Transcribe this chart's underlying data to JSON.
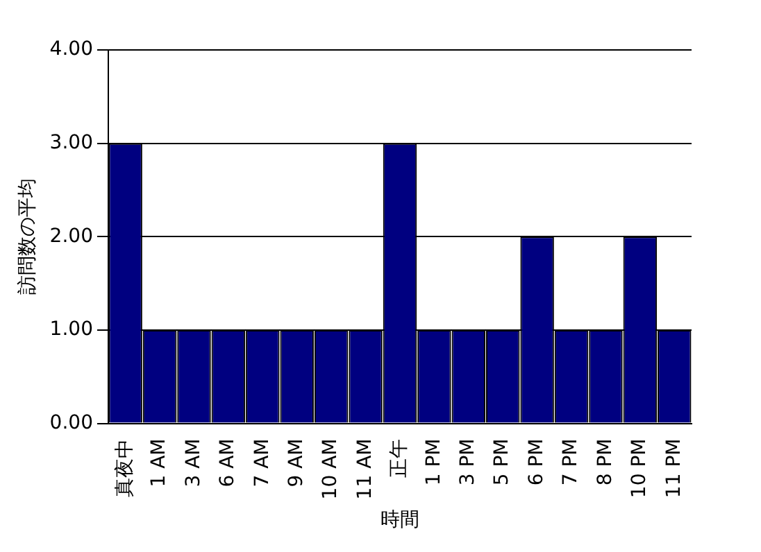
{
  "chart_data": {
    "type": "bar",
    "xlabel": "時間",
    "ylabel": "訪問数の平均",
    "categories": [
      "真夜中",
      "1 AM",
      "3 AM",
      "6 AM",
      "7 AM",
      "9 AM",
      "10 AM",
      "11 AM",
      "正午",
      "1 PM",
      "3 PM",
      "5 PM",
      "6 PM",
      "7 PM",
      "8 PM",
      "10 PM",
      "11 PM"
    ],
    "values": [
      3,
      1,
      1,
      1,
      1,
      1,
      1,
      1,
      3,
      1,
      1,
      1,
      2,
      1,
      1,
      2,
      1
    ],
    "color": "#000080",
    "ylim": [
      0,
      4
    ],
    "yticks": [
      {
        "value": 0,
        "label": "0.00"
      },
      {
        "value": 1,
        "label": "1.00"
      },
      {
        "value": 2,
        "label": "2.00"
      },
      {
        "value": 3,
        "label": "3.00"
      },
      {
        "value": 4,
        "label": "4.00"
      }
    ],
    "grid": "y",
    "legend": false
  }
}
